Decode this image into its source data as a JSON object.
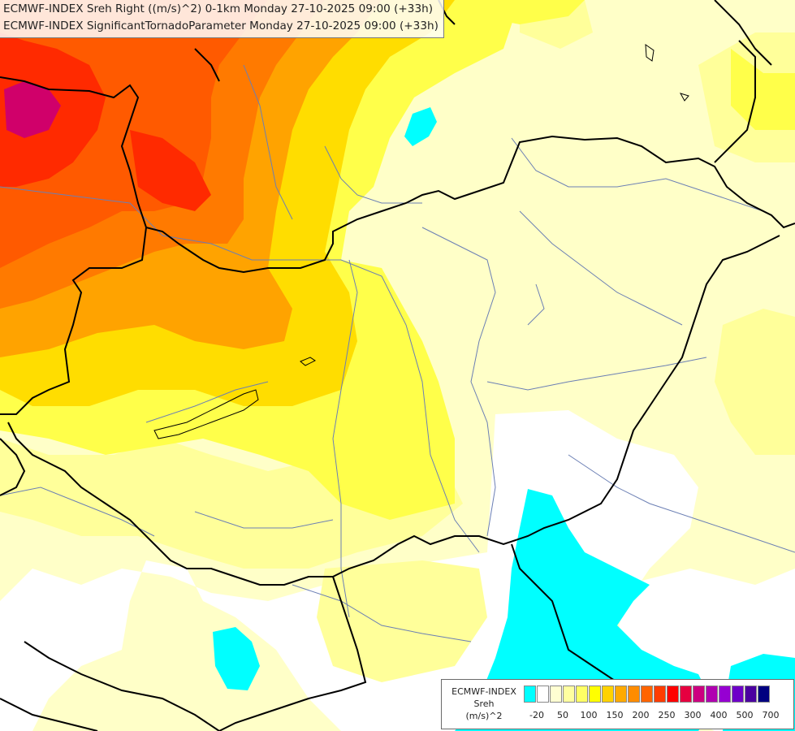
{
  "title": {
    "line1": "ECMWF-INDEX Sreh Right ((m/s)^2) 0-1km Monday 27-10-2025 09:00 (+33h)",
    "line2": "ECMWF-INDEX SignificantTornadoParameter Monday 27-10-2025 09:00 (+33h)"
  },
  "legend": {
    "label": [
      "ECMWF-INDEX",
      "Sreh",
      "(m/s)^2"
    ],
    "swatch_colors": [
      "#00ffff",
      "#ffffff",
      "#ffffd2",
      "#ffffa0",
      "#ffff64",
      "#ffff00",
      "#ffd200",
      "#ffaa00",
      "#ff8c00",
      "#ff6400",
      "#ff3c00",
      "#ff0000",
      "#e60040",
      "#cc0080",
      "#b000b0",
      "#9600d2",
      "#6e00c8",
      "#4b00a0",
      "#000080"
    ],
    "ticks": [
      "-20",
      "50",
      "100",
      "150",
      "200",
      "250",
      "300",
      "400",
      "500",
      "700"
    ]
  },
  "colors": {
    "border": "#000000",
    "rivers": "#6b7fb4",
    "cyan": "#00ffff",
    "white": "#ffffff",
    "pale": "#ffffc8",
    "light_yellow": "#ffff9a",
    "yellow": "#ffff4a",
    "gold": "#ffdd00",
    "orange": "#ffa300",
    "dark_orange": "#ff7a00",
    "orange_red": "#ff5a00",
    "red": "#ff2a00",
    "magenta": "#d0006a"
  }
}
